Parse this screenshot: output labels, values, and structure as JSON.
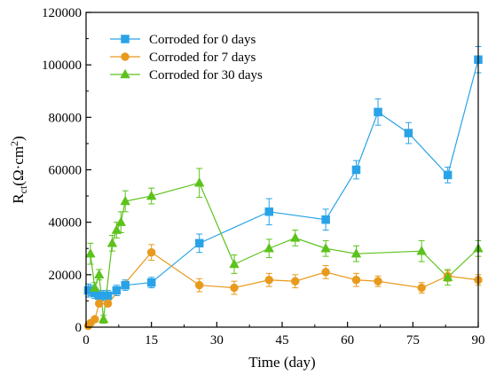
{
  "chart_data": {
    "type": "line",
    "xlabel": "Time (day)",
    "ylabel_main": "R",
    "ylabel_sub": "ct",
    "ylabel_units": "(Ω·cm",
    "ylabel_sup": "2",
    "ylabel_close": ")",
    "xlim": [
      0,
      90
    ],
    "ylim": [
      0,
      120000
    ],
    "xticks": [
      0,
      15,
      30,
      45,
      60,
      75,
      90
    ],
    "yticks": [
      0,
      20000,
      40000,
      60000,
      80000,
      100000,
      120000
    ],
    "grid": false,
    "legend_position": "top-left",
    "series": [
      {
        "name": "Corroded for 0 days",
        "color": "#29a3e8",
        "marker": "square",
        "x": [
          0.5,
          1,
          2,
          3,
          4,
          5,
          7,
          9,
          15,
          26,
          42,
          55,
          62,
          67,
          74,
          83,
          90
        ],
        "y": [
          14000,
          14000,
          13000,
          12000,
          12000,
          12000,
          14000,
          16000,
          17000,
          32000,
          44000,
          41000,
          60000,
          82000,
          74000,
          58000,
          102000
        ],
        "err": [
          2500,
          2000,
          2000,
          2000,
          2000,
          2000,
          2000,
          2000,
          2000,
          3500,
          5000,
          4000,
          3500,
          5000,
          4000,
          3000,
          5000
        ]
      },
      {
        "name": "Corroded for 7 days",
        "color": "#e89a1c",
        "marker": "circle",
        "x": [
          0.5,
          1,
          2,
          3,
          5,
          15,
          26,
          34,
          42,
          48,
          55,
          62,
          67,
          77,
          83,
          90
        ],
        "y": [
          500,
          1500,
          3000,
          9000,
          9000,
          28500,
          16000,
          15000,
          18000,
          17500,
          21000,
          18000,
          17500,
          15000,
          19500,
          18000
        ],
        "err": [
          500,
          500,
          500,
          1000,
          1000,
          3000,
          2500,
          2500,
          2500,
          2500,
          2500,
          2500,
          2000,
          2000,
          2000,
          2000
        ]
      },
      {
        "name": "Corroded for 30 days",
        "color": "#5cc21c",
        "marker": "triangle",
        "x": [
          1,
          2,
          3,
          4,
          6,
          7,
          8,
          9,
          15,
          26,
          34,
          42,
          48,
          55,
          62,
          77,
          83,
          90
        ],
        "y": [
          28000,
          15000,
          20000,
          3000,
          32000,
          37000,
          40000,
          48000,
          50000,
          55000,
          24000,
          30000,
          34000,
          30000,
          28000,
          29000,
          19000,
          30000
        ],
        "err": [
          4000,
          2000,
          2000,
          1500,
          3000,
          3000,
          4000,
          4000,
          3000,
          5500,
          3500,
          3500,
          3000,
          3000,
          3000,
          4000,
          3000,
          3000
        ]
      }
    ]
  }
}
